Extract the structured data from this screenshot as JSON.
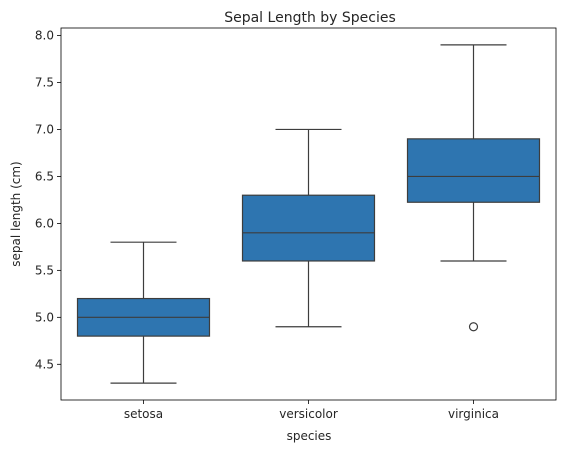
{
  "chart_data": {
    "type": "box",
    "title": "Sepal Length by Species",
    "xlabel": "species",
    "ylabel": "sepal length (cm)",
    "ylim": [
      4.12,
      8.08
    ],
    "yticks": [
      "4.5",
      "5.0",
      "5.5",
      "6.0",
      "6.5",
      "7.0",
      "7.5",
      "8.0"
    ],
    "box_color": "#2e75b0",
    "line_color": "#3d3d3d",
    "grid": false,
    "categories": [
      "setosa",
      "versicolor",
      "virginica"
    ],
    "boxes": [
      {
        "category": "setosa",
        "whisker_low": 4.3,
        "q1": 4.8,
        "median": 5.0,
        "q3": 5.2,
        "whisker_high": 5.8,
        "outliers": []
      },
      {
        "category": "versicolor",
        "whisker_low": 4.9,
        "q1": 5.6,
        "median": 5.9,
        "q3": 6.3,
        "whisker_high": 7.0,
        "outliers": []
      },
      {
        "category": "virginica",
        "whisker_low": 5.6,
        "q1": 6.225,
        "median": 6.5,
        "q3": 6.9,
        "whisker_high": 7.9,
        "outliers": [
          4.9
        ]
      }
    ]
  }
}
